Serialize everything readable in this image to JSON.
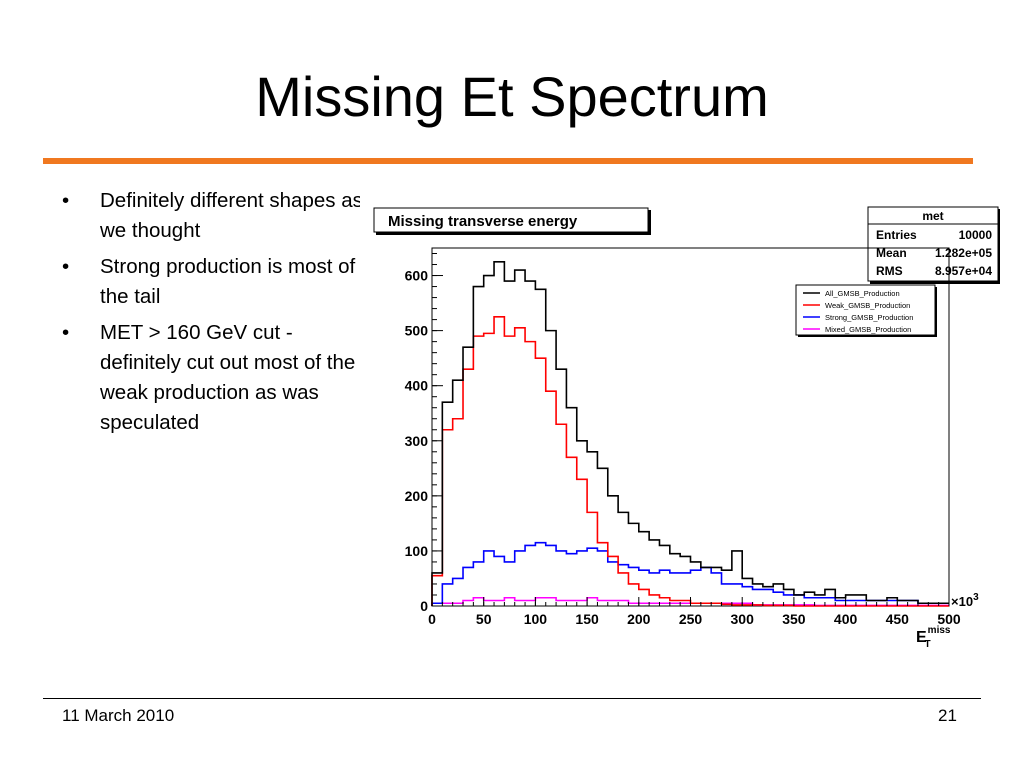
{
  "slide": {
    "title": "Missing Et Spectrum",
    "accent_color": "#f07820",
    "bullets": [
      "Definitely different shapes as we thought",
      "Strong production is most of the tail",
      "MET > 160 GeV cut - definitely cut out most of the weak production as was speculated"
    ],
    "bullet_glyph": "•",
    "footer_date": "11 March 2010",
    "page_number": "21"
  },
  "chart_data": {
    "type": "line",
    "title": "Missing transverse energy",
    "xlabel": "E",
    "xlabel_sup": "miss",
    "xlabel_sub": "T",
    "x_multiplier": "×10",
    "x_multiplier_exp": "3",
    "xlim": [
      0,
      500
    ],
    "ylim": [
      0,
      650
    ],
    "x_ticks": [
      0,
      50,
      100,
      150,
      200,
      250,
      300,
      350,
      400,
      450,
      500
    ],
    "y_ticks": [
      0,
      100,
      200,
      300,
      400,
      500,
      600
    ],
    "bin_width": 10,
    "stats_box": {
      "name": "met",
      "rows": [
        {
          "label": "Entries",
          "value": "10000"
        },
        {
          "label": "Mean",
          "value": "1.282e+05"
        },
        {
          "label": "RMS",
          "value": "8.957e+04"
        }
      ]
    },
    "series": [
      {
        "name": "All_GMSB_Production",
        "color": "#000000",
        "values": [
          60,
          370,
          410,
          470,
          580,
          600,
          625,
          590,
          610,
          590,
          575,
          500,
          430,
          360,
          300,
          280,
          250,
          200,
          170,
          150,
          135,
          120,
          110,
          95,
          90,
          80,
          70,
          70,
          65,
          100,
          50,
          40,
          35,
          40,
          30,
          20,
          25,
          20,
          30,
          15,
          20,
          20,
          10,
          10,
          15,
          10,
          10,
          5,
          5,
          5
        ]
      },
      {
        "name": "Weak_GMSB_Production",
        "color": "#ff0000",
        "values": [
          55,
          320,
          340,
          430,
          490,
          495,
          525,
          490,
          505,
          480,
          450,
          390,
          330,
          270,
          230,
          170,
          115,
          90,
          60,
          40,
          30,
          20,
          15,
          10,
          10,
          5,
          5,
          5,
          3,
          2,
          2,
          2,
          1,
          1,
          1,
          0,
          0,
          0,
          0,
          0,
          0,
          0,
          0,
          0,
          0,
          0,
          0,
          0,
          0,
          0
        ]
      },
      {
        "name": "Strong_GMSB_Production",
        "color": "#0000ff",
        "values": [
          5,
          40,
          50,
          70,
          80,
          100,
          90,
          80,
          100,
          110,
          115,
          110,
          100,
          95,
          100,
          105,
          100,
          80,
          75,
          70,
          65,
          60,
          65,
          60,
          60,
          65,
          70,
          60,
          40,
          40,
          35,
          30,
          30,
          25,
          20,
          20,
          15,
          15,
          15,
          10,
          10,
          10,
          10,
          10,
          10,
          10,
          10,
          5,
          5,
          5
        ]
      },
      {
        "name": "Mixed_GMSB_Production",
        "color": "#ff00ff",
        "values": [
          5,
          5,
          5,
          10,
          15,
          10,
          10,
          15,
          10,
          10,
          15,
          15,
          10,
          10,
          10,
          15,
          10,
          10,
          10,
          5,
          5,
          5,
          5,
          5,
          5,
          5,
          5,
          5,
          5,
          5,
          5,
          2,
          2,
          2,
          2,
          2,
          2,
          1,
          1,
          1,
          1,
          1,
          1,
          1,
          1,
          1,
          1,
          1,
          1,
          1
        ]
      }
    ]
  }
}
